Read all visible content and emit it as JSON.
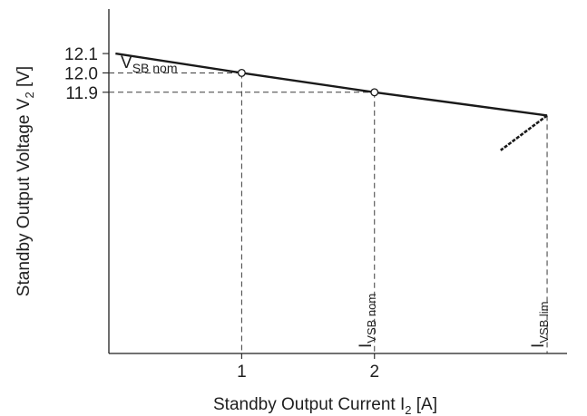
{
  "chart_data": {
    "type": "line",
    "xlabel_main": "Standby Output Current I",
    "xlabel_sub": "2",
    "xlabel_unit": " [A]",
    "ylabel_main": "Standby Output Voltage V",
    "ylabel_sub": "2",
    "ylabel_unit": " [V]",
    "x_ticks": [
      1,
      2
    ],
    "x_tick_labels": [
      "1",
      "2"
    ],
    "y_ticks": [
      12.1,
      12.0,
      11.9
    ],
    "y_tick_labels": [
      "12.1",
      "12.0",
      "11.9"
    ],
    "xlim": [
      0,
      3.45
    ],
    "ylim": [
      10.55,
      12.33
    ],
    "series": [
      {
        "x": [
          0.05,
          1.0,
          2.0,
          3.3
        ],
        "y": [
          12.1,
          12.0,
          11.9,
          11.78
        ],
        "color": "#1a1a1a"
      }
    ],
    "foldback": {
      "x": [
        3.3,
        2.95
      ],
      "y": [
        11.78,
        11.6
      ],
      "style": "dashed-thick"
    },
    "markers": [
      {
        "x": 1.0,
        "y": 12.0
      },
      {
        "x": 2.0,
        "y": 11.9
      }
    ],
    "annotations": {
      "vsb_nom": {
        "main": "V",
        "sub": "SB  nom"
      },
      "ivsb_nom": {
        "main": "I",
        "sub": "VSB nom"
      },
      "ivsb_lim": {
        "main": "I",
        "sub": "VSB lim"
      }
    },
    "grid": false,
    "colors": {
      "axis": "#1f1f1f",
      "line": "#1a1a1a",
      "dashed": "#3a3a3a"
    }
  }
}
